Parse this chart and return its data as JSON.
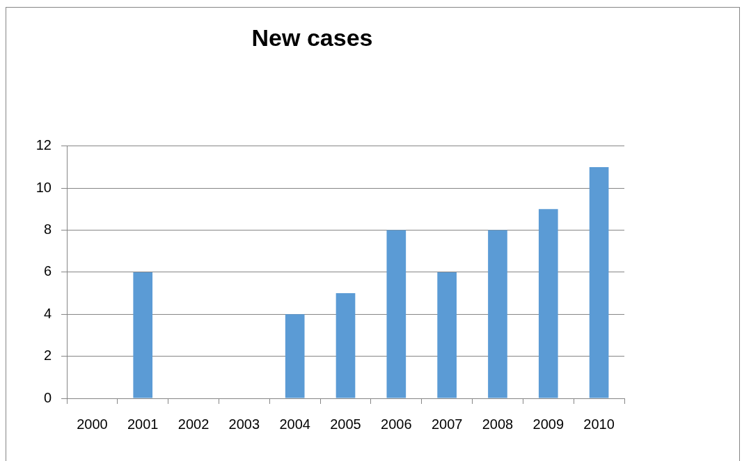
{
  "chart_data": {
    "type": "bar",
    "title": "New cases",
    "categories": [
      "2000",
      "2001",
      "2002",
      "2003",
      "2004",
      "2005",
      "2006",
      "2007",
      "2008",
      "2009",
      "2010"
    ],
    "values": [
      0,
      6,
      0,
      0,
      4,
      5,
      8,
      6,
      8,
      9,
      11
    ],
    "color": "#5b9bd5",
    "ylim": [
      0,
      12
    ],
    "yticks": [
      0,
      2,
      4,
      6,
      8,
      10,
      12
    ],
    "grid": "y",
    "legend": false
  }
}
